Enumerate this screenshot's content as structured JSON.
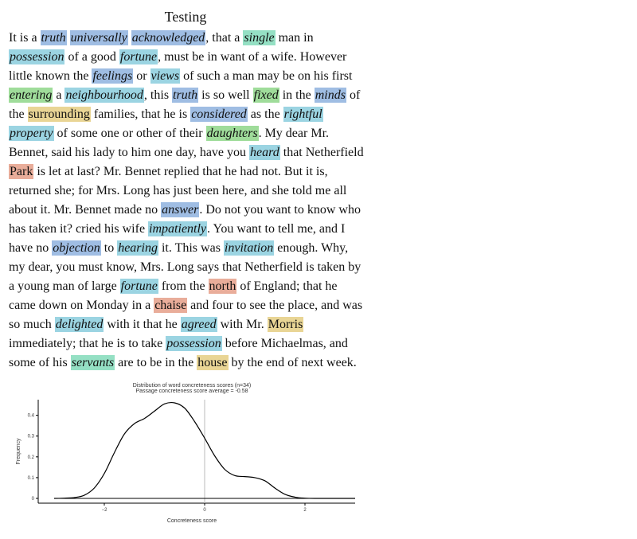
{
  "title": "Testing",
  "colors": {
    "blue": "#9fbde3",
    "teal": "#9bd4e2",
    "green": "#9fdc9a",
    "mint": "#95e0c4",
    "tan": "#e9d595",
    "red": "#e9ad9a",
    "curve": "#000000",
    "zero_line": "#bbbbbb"
  },
  "passage_lines": [
    [
      {
        "t": "It is a "
      },
      {
        "t": "truth",
        "c": "blue",
        "i": 1
      },
      {
        "t": " "
      },
      {
        "t": "universally",
        "c": "blue",
        "i": 1
      },
      {
        "t": " "
      },
      {
        "t": "acknowledged",
        "c": "blue",
        "i": 1
      },
      {
        "t": ", that a "
      },
      {
        "t": "single",
        "c": "mint",
        "i": 1
      },
      {
        "t": " man in"
      }
    ],
    [
      {
        "t": "possession",
        "c": "teal",
        "i": 1
      },
      {
        "t": " of a good "
      },
      {
        "t": "fortune",
        "c": "teal",
        "i": 1
      },
      {
        "t": ", must be in want of a wife. However"
      }
    ],
    [
      {
        "t": "little known the "
      },
      {
        "t": "feelings",
        "c": "blue",
        "i": 1
      },
      {
        "t": " or "
      },
      {
        "t": "views",
        "c": "teal",
        "i": 1
      },
      {
        "t": " of such a man may be on his first"
      }
    ],
    [
      {
        "t": "entering",
        "c": "green",
        "i": 1
      },
      {
        "t": " a "
      },
      {
        "t": "neighbourhood",
        "c": "teal",
        "i": 1
      },
      {
        "t": ", this "
      },
      {
        "t": "truth",
        "c": "blue",
        "i": 1
      },
      {
        "t": " is so well "
      },
      {
        "t": "fixed",
        "c": "green",
        "i": 1
      },
      {
        "t": " in the "
      },
      {
        "t": "minds",
        "c": "blue",
        "i": 1
      },
      {
        "t": " of"
      }
    ],
    [
      {
        "t": "the "
      },
      {
        "t": "surrounding",
        "c": "tan"
      },
      {
        "t": " families, that he is "
      },
      {
        "t": "considered",
        "c": "blue",
        "i": 1
      },
      {
        "t": " as the "
      },
      {
        "t": "rightful",
        "c": "teal",
        "i": 1
      }
    ],
    [
      {
        "t": "property",
        "c": "teal",
        "i": 1
      },
      {
        "t": " of some one or other of their "
      },
      {
        "t": "daughters",
        "c": "green",
        "i": 1
      },
      {
        "t": ". My dear Mr."
      }
    ],
    [
      {
        "t": "Bennet, said his lady to him one day, have you "
      },
      {
        "t": "heard",
        "c": "teal",
        "i": 1
      },
      {
        "t": " that Netherfield"
      }
    ],
    [
      {
        "t": "Park",
        "c": "red"
      },
      {
        "t": " is let at last? Mr. Bennet replied that he had not. But it is,"
      }
    ],
    [
      {
        "t": "returned she; for Mrs. Long has just been here, and she told me all"
      }
    ],
    [
      {
        "t": "about it. Mr. Bennet made no "
      },
      {
        "t": "answer",
        "c": "blue",
        "i": 1
      },
      {
        "t": ". Do not you want to know who"
      }
    ],
    [
      {
        "t": "has taken it? cried his wife "
      },
      {
        "t": "impatiently",
        "c": "teal",
        "i": 1
      },
      {
        "t": ". You want to tell me, and I"
      }
    ],
    [
      {
        "t": "have no "
      },
      {
        "t": "objection",
        "c": "blue",
        "i": 1
      },
      {
        "t": " to "
      },
      {
        "t": "hearing",
        "c": "teal",
        "i": 1
      },
      {
        "t": " it. This was "
      },
      {
        "t": "invitation",
        "c": "teal",
        "i": 1
      },
      {
        "t": " enough. Why,"
      }
    ],
    [
      {
        "t": "my dear, you must know, Mrs. Long says that Netherfield is taken by"
      }
    ],
    [
      {
        "t": "a young man of large "
      },
      {
        "t": "fortune",
        "c": "teal",
        "i": 1
      },
      {
        "t": " from the "
      },
      {
        "t": "north",
        "c": "red"
      },
      {
        "t": " of England; that he"
      }
    ],
    [
      {
        "t": "came down on Monday in a "
      },
      {
        "t": "chaise",
        "c": "red"
      },
      {
        "t": " and four to see the place, and was"
      }
    ],
    [
      {
        "t": "so much "
      },
      {
        "t": "delighted",
        "c": "teal",
        "i": 1
      },
      {
        "t": " with it that he "
      },
      {
        "t": "agreed",
        "c": "teal",
        "i": 1
      },
      {
        "t": " with Mr. "
      },
      {
        "t": "Morris",
        "c": "tan"
      }
    ],
    [
      {
        "t": "immediately; that he is to take "
      },
      {
        "t": "possession",
        "c": "teal",
        "i": 1
      },
      {
        "t": " before Michaelmas, and"
      }
    ],
    [
      {
        "t": "some of his "
      },
      {
        "t": "servants",
        "c": "mint",
        "i": 1
      },
      {
        "t": " are to be in the "
      },
      {
        "t": "house",
        "c": "tan"
      },
      {
        "t": " by the end of next week."
      }
    ]
  ],
  "chart_data": {
    "type": "line",
    "title": "Distribution of word concreteness scores (n=34)",
    "subtitle": "Passage concreteness score average = -0.58",
    "xlabel": "Concreteness score",
    "ylabel": "Frequency",
    "xlim": [
      -3.0,
      3.0
    ],
    "ylim": [
      0,
      0.46
    ],
    "xticks": [
      -2,
      0,
      2
    ],
    "xtick_labels": [
      "−2",
      "0",
      "2"
    ],
    "yticks": [
      0,
      0.1,
      0.2,
      0.3,
      0.4
    ],
    "ytick_labels": [
      "0",
      "0.1",
      "0.2",
      "0.3",
      "0.4"
    ],
    "vline_x": 0,
    "grid": false,
    "series": [
      {
        "x": [
          -3.0,
          -2.8,
          -2.6,
          -2.4,
          -2.2,
          -2.0,
          -1.8,
          -1.6,
          -1.4,
          -1.2,
          -1.0,
          -0.8,
          -0.6,
          -0.4,
          -0.2,
          0.0,
          0.2,
          0.4,
          0.6,
          0.8,
          1.0,
          1.2,
          1.4,
          1.6,
          1.8,
          2.0,
          2.2,
          2.4,
          2.6,
          2.8,
          3.0
        ],
        "values": [
          0.0,
          0.001,
          0.004,
          0.015,
          0.05,
          0.12,
          0.22,
          0.31,
          0.36,
          0.385,
          0.42,
          0.455,
          0.46,
          0.435,
          0.37,
          0.29,
          0.205,
          0.14,
          0.11,
          0.105,
          0.1,
          0.085,
          0.05,
          0.02,
          0.006,
          0.001,
          0.0,
          0.0,
          0.0,
          0.0,
          0.0
        ]
      }
    ]
  }
}
